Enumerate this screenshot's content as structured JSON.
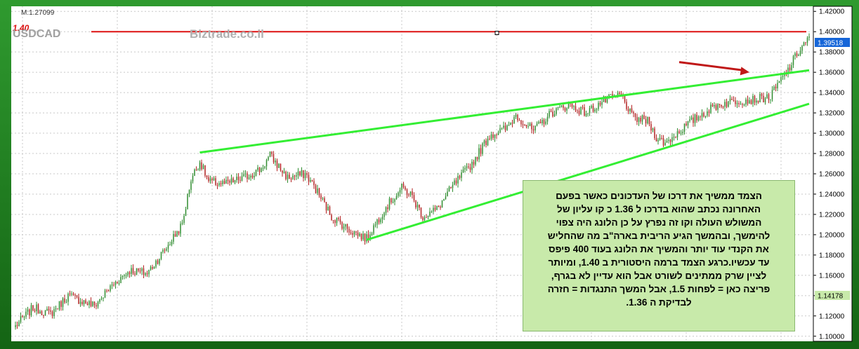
{
  "header": {
    "symbol": "USDCAD",
    "level_tag": "1.40",
    "watermark": "Biztrade.co.il",
    "magnet_readout": "M:1.27099"
  },
  "price_tags": {
    "current": "1.39518",
    "lower": "1.14178"
  },
  "annotation": {
    "lines": [
      "הצמד ממשיך את דרכו של העדכונים כאשר  בפעם",
      "האחרונה נכתב  שהוא בדרכו ל 1.36 כ קו עליון  של",
      "המשולש העולה  וקו זה נפרץ על כן הלונג  היה צפוי",
      "להימשך, ובהמשך הגיע  הריבית בארה\"ב  מה שהחליש",
      "את הקנדי עוד יותר  והמשיך את הלונג בעוד 400 פיפס",
      "עד עכשיו.כרגע הצמד  ברמה היסטורית ב 1.40, ומיותר",
      "לציין  שרק ממתינים לשורט אבל הוא  עדיין לא בגרף,",
      "פריצה כאן  =  לפחות 1.5, אבל המשך  התנגדות =  חזרה",
      "לבדיקת ה  1.36."
    ]
  },
  "colors": {
    "up": "#2e8b2e",
    "down": "#b22222",
    "trendline": "#33ee33",
    "resistance": "#dd1111",
    "arrow": "#c01818",
    "price_tag_current": "#1565d8",
    "price_tag_lower": "#c8eaaa"
  },
  "chart_data": {
    "type": "candlestick",
    "symbol": "USDCAD",
    "ylim": [
      1.095,
      1.425
    ],
    "y_ticks": [
      "1.42000",
      "1.40000",
      "1.38000",
      "1.36000",
      "1.34000",
      "1.32000",
      "1.30000",
      "1.28000",
      "1.26000",
      "1.24000",
      "1.22000",
      "1.20000",
      "1.18000",
      "1.16000",
      "1.14000",
      "1.12000",
      "1.10000"
    ],
    "anchors": [
      [
        0,
        1.11
      ],
      [
        10,
        1.128
      ],
      [
        20,
        1.122
      ],
      [
        30,
        1.14
      ],
      [
        45,
        1.13
      ],
      [
        55,
        1.15
      ],
      [
        65,
        1.165
      ],
      [
        75,
        1.162
      ],
      [
        85,
        1.185
      ],
      [
        95,
        1.21
      ],
      [
        100,
        1.255
      ],
      [
        105,
        1.272
      ],
      [
        110,
        1.252
      ],
      [
        120,
        1.25
      ],
      [
        130,
        1.256
      ],
      [
        140,
        1.265
      ],
      [
        145,
        1.278
      ],
      [
        155,
        1.256
      ],
      [
        165,
        1.26
      ],
      [
        170,
        1.248
      ],
      [
        180,
        1.218
      ],
      [
        190,
        1.205
      ],
      [
        200,
        1.196
      ],
      [
        210,
        1.225
      ],
      [
        220,
        1.246
      ],
      [
        225,
        1.24
      ],
      [
        232,
        1.218
      ],
      [
        240,
        1.225
      ],
      [
        250,
        1.25
      ],
      [
        260,
        1.27
      ],
      [
        270,
        1.298
      ],
      [
        280,
        1.305
      ],
      [
        285,
        1.318
      ],
      [
        295,
        1.302
      ],
      [
        305,
        1.32
      ],
      [
        315,
        1.328
      ],
      [
        325,
        1.32
      ],
      [
        335,
        1.332
      ],
      [
        345,
        1.338
      ],
      [
        350,
        1.32
      ],
      [
        352,
        1.315
      ],
      [
        360,
        1.312
      ],
      [
        365,
        1.296
      ],
      [
        370,
        1.29
      ],
      [
        380,
        1.305
      ],
      [
        390,
        1.318
      ],
      [
        400,
        1.328
      ],
      [
        410,
        1.332
      ],
      [
        420,
        1.333
      ],
      [
        430,
        1.336
      ],
      [
        435,
        1.35
      ],
      [
        440,
        1.362
      ],
      [
        445,
        1.378
      ],
      [
        452,
        1.395
      ]
    ],
    "candle_count": 453,
    "current_price": 1.39518,
    "lines": [
      {
        "name": "resistance",
        "x": [
          0,
          452
        ],
        "y": [
          1.4,
          1.4
        ]
      },
      {
        "name": "upper trendline",
        "x": [
          105,
          452
        ],
        "y": [
          1.281,
          1.362
        ]
      },
      {
        "name": "lower trendline",
        "x": [
          200,
          452
        ],
        "y": [
          1.195,
          1.329
        ]
      }
    ],
    "arrow": {
      "from": [
        378,
        1.37
      ],
      "to": [
        418,
        1.36
      ]
    },
    "grid": true
  }
}
